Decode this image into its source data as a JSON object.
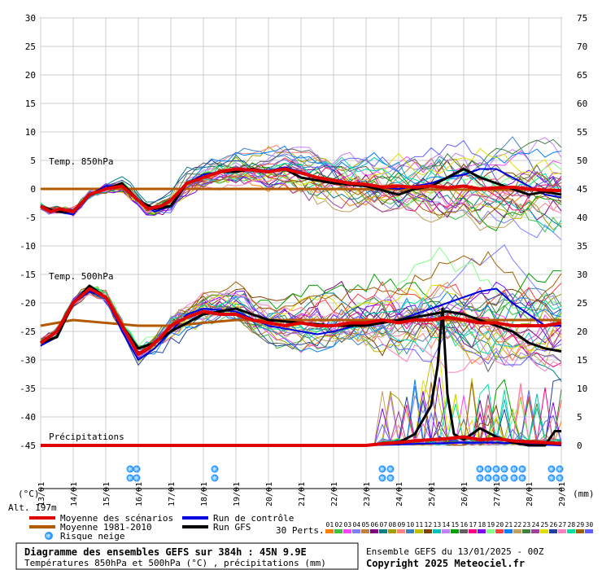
{
  "chart_data": {
    "type": "line",
    "title": "Diagramme des ensembles GEFS sur 384h : 45N 9.9E",
    "subtitle": "Températures 850hPa et 500hPa (°C) , précipitations (mm)",
    "left_axis": {
      "label": "(°C)",
      "ticks": [
        30,
        25,
        20,
        15,
        10,
        5,
        0,
        -5,
        -10,
        -15,
        -20,
        -25,
        -30,
        -35,
        -40,
        -45
      ],
      "range": [
        -45,
        30
      ]
    },
    "right_axis": {
      "label": "(mm)",
      "ticks": [
        75,
        70,
        65,
        60,
        55,
        50,
        45,
        40,
        35,
        30,
        25,
        20,
        15,
        10,
        5,
        0
      ],
      "range": [
        0,
        75
      ]
    },
    "x_dates": [
      "13/01",
      "14/01",
      "15/01",
      "16/01",
      "17/01",
      "18/01",
      "19/01",
      "20/01",
      "21/01",
      "22/01",
      "23/01",
      "24/01",
      "25/01",
      "26/01",
      "27/01",
      "28/01",
      "29/01"
    ],
    "altitude": "Alt. 197m",
    "panel_labels": {
      "t850": "Temp. 850hPa",
      "t500": "Temp. 500hPa",
      "precip": "Précipitations"
    },
    "snow_icon_text": "❄",
    "snow_days": [
      2.75,
      2.95,
      5.35,
      10.5,
      10.75,
      13.5,
      13.75,
      14.0,
      14.25,
      14.55,
      14.8,
      15.7,
      15.95
    ],
    "series": [
      {
        "name": "Moyenne des scénarios",
        "color": "#e00000",
        "t850": [
          [
            0,
            -3
          ],
          [
            0.3,
            -4
          ],
          [
            0.6,
            -3.5
          ],
          [
            1,
            -4
          ],
          [
            1.5,
            -1
          ],
          [
            2,
            0
          ],
          [
            2.5,
            0.5
          ],
          [
            3,
            -2
          ],
          [
            3.3,
            -3.5
          ],
          [
            3.7,
            -3
          ],
          [
            4,
            -2
          ],
          [
            4.5,
            1
          ],
          [
            5,
            2
          ],
          [
            5.5,
            3
          ],
          [
            6,
            3.5
          ],
          [
            6.5,
            3.3
          ],
          [
            7,
            3
          ],
          [
            7.5,
            3.5
          ],
          [
            8,
            2.8
          ],
          [
            8.5,
            2
          ],
          [
            9,
            1.5
          ],
          [
            9.5,
            1
          ],
          [
            10,
            0.8
          ],
          [
            10.5,
            0.3
          ],
          [
            11,
            0.5
          ],
          [
            11.5,
            0.3
          ],
          [
            12,
            0.5
          ],
          [
            12.5,
            0.2
          ],
          [
            13,
            0.5
          ],
          [
            13.5,
            0
          ],
          [
            14,
            0.2
          ],
          [
            14.5,
            0.3
          ],
          [
            15,
            0
          ],
          [
            15.5,
            -0.2
          ],
          [
            16,
            -0.3
          ]
        ],
        "t500": [
          [
            0,
            -27
          ],
          [
            0.5,
            -25
          ],
          [
            1,
            -20
          ],
          [
            1.5,
            -17.5
          ],
          [
            2,
            -19
          ],
          [
            2.5,
            -24
          ],
          [
            3,
            -29
          ],
          [
            3.3,
            -28
          ],
          [
            3.7,
            -26
          ],
          [
            4,
            -24
          ],
          [
            4.5,
            -22.5
          ],
          [
            5,
            -21.5
          ],
          [
            5.5,
            -22
          ],
          [
            6,
            -22
          ],
          [
            6.5,
            -23
          ],
          [
            7,
            -23.5
          ],
          [
            7.5,
            -24
          ],
          [
            8,
            -23.5
          ],
          [
            8.5,
            -24
          ],
          [
            9,
            -24
          ],
          [
            9.5,
            -23.5
          ],
          [
            10,
            -23.5
          ],
          [
            10.5,
            -23
          ],
          [
            11,
            -23.5
          ],
          [
            11.5,
            -23
          ],
          [
            12,
            -23
          ],
          [
            12.5,
            -22.5
          ],
          [
            13,
            -23
          ],
          [
            13.5,
            -23.5
          ],
          [
            14,
            -23.5
          ],
          [
            14.5,
            -24
          ],
          [
            15,
            -24
          ],
          [
            15.5,
            -24
          ],
          [
            16,
            -23.5
          ]
        ],
        "precip": [
          [
            0,
            0
          ],
          [
            10,
            0
          ],
          [
            10.5,
            0.3
          ],
          [
            11,
            0.5
          ],
          [
            11.5,
            0.8
          ],
          [
            12,
            1
          ],
          [
            12.5,
            1.2
          ],
          [
            13,
            1.5
          ],
          [
            13.5,
            1
          ],
          [
            14,
            1.2
          ],
          [
            14.5,
            0.8
          ],
          [
            15,
            0.6
          ],
          [
            15.5,
            0.5
          ],
          [
            16,
            0.3
          ]
        ]
      },
      {
        "name": "Moyenne 1981-2010",
        "color": "#b35a00",
        "t850": [
          [
            0,
            0
          ],
          [
            8,
            0
          ],
          [
            16,
            -0.2
          ]
        ],
        "t500": [
          [
            0,
            -24
          ],
          [
            1,
            -23
          ],
          [
            2,
            -23.5
          ],
          [
            3,
            -24
          ],
          [
            4,
            -24
          ],
          [
            5,
            -23.5
          ],
          [
            6,
            -23
          ],
          [
            8,
            -23
          ],
          [
            10,
            -23
          ],
          [
            12,
            -23
          ],
          [
            14,
            -23
          ],
          [
            16,
            -23
          ]
        ],
        "precip": []
      },
      {
        "name": "Run de contrôle",
        "color": "#0000e0",
        "t850": [
          [
            0,
            -3
          ],
          [
            0.5,
            -4
          ],
          [
            1,
            -4.5
          ],
          [
            1.5,
            -1
          ],
          [
            2,
            0.5
          ],
          [
            2.5,
            0.5
          ],
          [
            3,
            -2
          ],
          [
            3.5,
            -4
          ],
          [
            4,
            -3
          ],
          [
            4.5,
            1
          ],
          [
            5,
            2.5
          ],
          [
            5.5,
            3
          ],
          [
            6,
            3.5
          ],
          [
            6.5,
            3.5
          ],
          [
            7,
            3.2
          ],
          [
            7.5,
            3.8
          ],
          [
            8,
            3
          ],
          [
            8.5,
            2
          ],
          [
            9,
            1.5
          ],
          [
            10,
            0.5
          ],
          [
            11,
            0
          ],
          [
            11.5,
            0.5
          ],
          [
            12,
            1
          ],
          [
            12.5,
            2
          ],
          [
            13,
            2.5
          ],
          [
            13.5,
            3.5
          ],
          [
            14,
            3.5
          ],
          [
            14.5,
            2
          ],
          [
            15,
            0.5
          ],
          [
            15.5,
            -1
          ],
          [
            16,
            -1.5
          ]
        ],
        "t500": [
          [
            0,
            -27.5
          ],
          [
            0.5,
            -26
          ],
          [
            1,
            -20
          ],
          [
            1.5,
            -18
          ],
          [
            2,
            -19
          ],
          [
            2.5,
            -25
          ],
          [
            3,
            -30
          ],
          [
            3.5,
            -28
          ],
          [
            4,
            -25
          ],
          [
            4.5,
            -22
          ],
          [
            5,
            -21
          ],
          [
            6,
            -21.5
          ],
          [
            7,
            -24
          ],
          [
            8,
            -25
          ],
          [
            8.5,
            -25.5
          ],
          [
            9,
            -25
          ],
          [
            10,
            -23.5
          ],
          [
            11,
            -23
          ],
          [
            12,
            -21
          ],
          [
            12.5,
            -20
          ],
          [
            13,
            -19
          ],
          [
            13.5,
            -18
          ],
          [
            14,
            -17.5
          ],
          [
            14.5,
            -20
          ],
          [
            15,
            -22
          ],
          [
            15.5,
            -24
          ],
          [
            16,
            -24
          ]
        ],
        "precip": [
          [
            0,
            0
          ],
          [
            10,
            0
          ],
          [
            13,
            0.5
          ],
          [
            14,
            0.5
          ],
          [
            16,
            0
          ]
        ]
      },
      {
        "name": "Run GFS",
        "color": "#000000",
        "t850": [
          [
            0,
            -3
          ],
          [
            0.5,
            -4
          ],
          [
            1,
            -4
          ],
          [
            1.5,
            -1
          ],
          [
            2,
            0
          ],
          [
            2.5,
            1
          ],
          [
            3,
            -2
          ],
          [
            3.5,
            -3.5
          ],
          [
            4,
            -3
          ],
          [
            4.5,
            1
          ],
          [
            5,
            2
          ],
          [
            5.5,
            3
          ],
          [
            6,
            3
          ],
          [
            6.5,
            3.5
          ],
          [
            7,
            3
          ],
          [
            7.5,
            3.5
          ],
          [
            8,
            2
          ],
          [
            8.5,
            1.5
          ],
          [
            9,
            1
          ],
          [
            10,
            0.5
          ],
          [
            11,
            -1
          ],
          [
            11.5,
            0
          ],
          [
            12,
            0.5
          ],
          [
            12.5,
            2
          ],
          [
            13,
            3.5
          ],
          [
            13.5,
            2
          ],
          [
            14,
            1
          ],
          [
            14.5,
            0
          ],
          [
            15,
            -1
          ],
          [
            15.5,
            -0.5
          ],
          [
            16,
            -1
          ]
        ],
        "t500": [
          [
            0,
            -27
          ],
          [
            0.5,
            -26
          ],
          [
            1,
            -20
          ],
          [
            1.5,
            -17
          ],
          [
            2,
            -19
          ],
          [
            2.5,
            -24
          ],
          [
            3,
            -28
          ],
          [
            3.5,
            -27
          ],
          [
            4,
            -25
          ],
          [
            5,
            -22
          ],
          [
            6,
            -21
          ],
          [
            7,
            -23
          ],
          [
            8,
            -23.5
          ],
          [
            9,
            -24
          ],
          [
            10,
            -24
          ],
          [
            11,
            -23
          ],
          [
            12,
            -22
          ],
          [
            12.5,
            -21.5
          ],
          [
            13,
            -22
          ],
          [
            13.5,
            -23
          ],
          [
            14,
            -24
          ],
          [
            14.5,
            -25
          ],
          [
            15,
            -27
          ],
          [
            15.5,
            -28
          ],
          [
            16,
            -28.5
          ]
        ],
        "precip": [
          [
            0,
            0
          ],
          [
            10,
            0
          ],
          [
            11,
            0.5
          ],
          [
            11.5,
            2
          ],
          [
            12,
            7
          ],
          [
            12.2,
            14
          ],
          [
            12.35,
            24
          ],
          [
            12.5,
            9
          ],
          [
            12.7,
            2
          ],
          [
            13,
            1
          ],
          [
            13.5,
            3
          ],
          [
            14,
            1.5
          ],
          [
            14.5,
            0.5
          ],
          [
            15,
            0
          ],
          [
            15.5,
            0
          ],
          [
            15.8,
            2.5
          ],
          [
            16,
            2.5
          ]
        ]
      }
    ],
    "perturbations": {
      "label": "30 Perts.",
      "ids": [
        "01",
        "02",
        "03",
        "04",
        "05",
        "06",
        "07",
        "08",
        "09",
        "10",
        "11",
        "12",
        "13",
        "14",
        "15",
        "16",
        "17",
        "18",
        "19",
        "20",
        "21",
        "22",
        "23",
        "24",
        "25",
        "26",
        "27",
        "28",
        "29",
        "30"
      ],
      "colors": [
        "#ff8000",
        "#40c040",
        "#ff40ff",
        "#8080ff",
        "#c08040",
        "#800080",
        "#008080",
        "#a0a000",
        "#ff8080",
        "#4080c0",
        "#c0c000",
        "#804000",
        "#00c0c0",
        "#c080ff",
        "#00a000",
        "#606060",
        "#ff0080",
        "#8000ff",
        "#80ff80",
        "#ff4040",
        "#0080ff",
        "#c0a060",
        "#408040",
        "#a040a0",
        "#e0e000",
        "#2040a0",
        "#ff80c0",
        "#00e0a0",
        "#a06000",
        "#6060ff"
      ]
    },
    "legend": {
      "snow_label": "Risque neige",
      "placement": "bottom-left"
    },
    "footer": {
      "ensemble": "Ensemble GEFS du 13/01/2025 - 00Z",
      "copyright": "Copyright 2025 Meteociel.fr"
    }
  }
}
